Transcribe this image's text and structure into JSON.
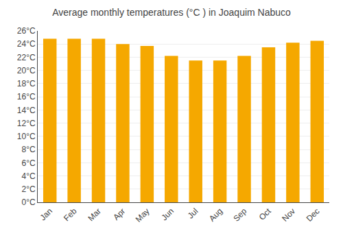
{
  "chart_data": {
    "type": "bar",
    "title": "Average monthly temperatures (°C ) in Joaquim Nabuco",
    "categories": [
      "Jan",
      "Feb",
      "Mar",
      "Apr",
      "May",
      "Jun",
      "Jul",
      "Aug",
      "Sep",
      "Oct",
      "Nov",
      "Dec"
    ],
    "values": [
      24.8,
      24.8,
      24.8,
      24.0,
      23.7,
      22.2,
      21.5,
      21.5,
      22.2,
      23.5,
      24.2,
      24.5
    ],
    "color": "#F5A800",
    "ylim": [
      0,
      26
    ],
    "yticks": [
      {
        "value": 0,
        "label": "0°C"
      },
      {
        "value": 2,
        "label": "2°C"
      },
      {
        "value": 4,
        "label": "4°C"
      },
      {
        "value": 6,
        "label": "6°C"
      },
      {
        "value": 8,
        "label": "8°C"
      },
      {
        "value": 10,
        "label": "10°C"
      },
      {
        "value": 12,
        "label": "12°C"
      },
      {
        "value": 14,
        "label": "14°C"
      },
      {
        "value": 16,
        "label": "16°C"
      },
      {
        "value": 18,
        "label": "18°C"
      },
      {
        "value": 20,
        "label": "20°C"
      },
      {
        "value": 22,
        "label": "22°C"
      },
      {
        "value": 24,
        "label": "24°C"
      },
      {
        "value": 26,
        "label": "26°C"
      }
    ],
    "grid": true
  }
}
